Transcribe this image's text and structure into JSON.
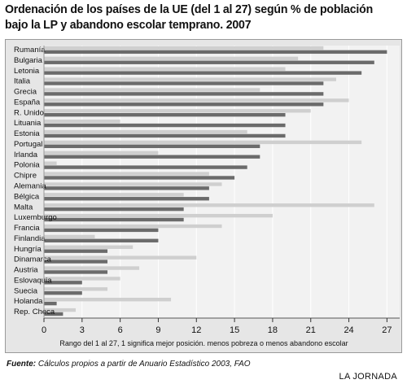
{
  "title_line1": "Ordenación de los países de la UE (del 1 al 27) según % de población",
  "title_line2": "bajo la LP y abandono escolar temprano. 2007",
  "source_label": "Fuente:",
  "source_text": "Cálculos propios a partir de Anuario Estadístico 2003, FAO",
  "logo": "LA JORNADA",
  "colors": {
    "dark_bar": "#6b6b6b",
    "light_bar": "#cfcfcf",
    "plot_bg": "#f2f2f2",
    "frame_bg": "#e6e6e6"
  },
  "chart_data": {
    "type": "bar",
    "orientation": "horizontal",
    "xlabel": "Rango del 1 al 27, 1 significa mejor posición. menos pobreza o menos abandono escolar",
    "xlim": [
      0,
      28
    ],
    "xticks": [
      0,
      3,
      6,
      9,
      12,
      15,
      18,
      21,
      24,
      27
    ],
    "categories": [
      "Rumanía",
      "Bulgaria",
      "Letonia",
      "Italia",
      "Grecia",
      "España",
      "R. Unido",
      "Lituania",
      "Estonia",
      "Portugal",
      "Irlanda",
      "Polonia",
      "Chipre",
      "Alemania",
      "Bélgica",
      "Malta",
      "Luxemburgo",
      "Francia",
      "Finlandia",
      "Hungría",
      "Dinamarca",
      "Austria",
      "Eslovaquia",
      "Suecia",
      "Holanda",
      "Rep. Checa"
    ],
    "series": [
      {
        "values": [
          22,
          20,
          19,
          23,
          17,
          24,
          21,
          6,
          16,
          25,
          9,
          1,
          13,
          14,
          11,
          26,
          18,
          14,
          4,
          7,
          12,
          7.5,
          6,
          5,
          10,
          2.5
        ]
      },
      {
        "values": [
          27,
          26,
          25,
          22,
          22,
          22,
          19,
          19,
          19,
          17,
          17,
          16,
          15,
          13,
          13,
          11,
          11,
          9,
          9,
          5,
          5,
          5,
          3,
          3,
          1,
          1.5
        ]
      }
    ]
  }
}
